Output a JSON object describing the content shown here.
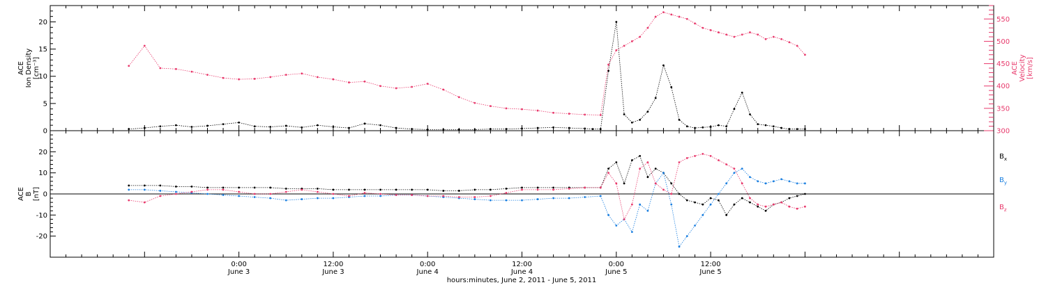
{
  "colors": {
    "density": "#000000",
    "velocity": "#e8386b",
    "bx": "#000000",
    "by": "#1a7fe0",
    "bz": "#e8386b",
    "axis": "#000000"
  },
  "chart_data": [
    {
      "type": "scatter",
      "ylabel_lines": [
        "ACE",
        "Ion Density",
        "[cm⁻³]"
      ],
      "ylim": [
        0,
        23
      ],
      "yticks": [
        0,
        5,
        10,
        15,
        20
      ],
      "y2label_lines": [
        "ACE",
        "Velocity",
        "[km/s]"
      ],
      "y2lim": [
        300,
        580
      ],
      "y2ticks": [
        300,
        350,
        400,
        450,
        500,
        550
      ],
      "series": [
        {
          "key": "density",
          "axis": "left",
          "x": [
            -14,
            -12,
            -10,
            -8,
            -6,
            -4,
            -2,
            0,
            2,
            4,
            6,
            8,
            10,
            12,
            14,
            16,
            18,
            20,
            22,
            24,
            26,
            28,
            30,
            32,
            34,
            36,
            38,
            40,
            42,
            44,
            45,
            46,
            47,
            48,
            49,
            50,
            51,
            52,
            53,
            54,
            55,
            56,
            57,
            58,
            59,
            60,
            61,
            62,
            63,
            64,
            65,
            66,
            67,
            68,
            69,
            70,
            71,
            72
          ],
          "y": [
            0.3,
            0.5,
            0.8,
            1.0,
            0.7,
            0.9,
            1.2,
            1.5,
            0.8,
            0.7,
            0.9,
            0.6,
            1.0,
            0.7,
            0.5,
            1.3,
            1.0,
            0.5,
            0.3,
            0.2,
            0.2,
            0.2,
            0.2,
            0.3,
            0.3,
            0.4,
            0.5,
            0.6,
            0.5,
            0.4,
            0.3,
            0.3,
            11.0,
            20.0,
            3.0,
            1.5,
            2.0,
            3.5,
            6.0,
            12.0,
            8.0,
            2.0,
            0.8,
            0.5,
            0.6,
            0.7,
            1.0,
            0.8,
            4.0,
            7.0,
            3.0,
            1.2,
            1.0,
            0.8,
            0.5,
            0.3,
            0.3,
            0.3
          ]
        },
        {
          "key": "velocity",
          "axis": "right",
          "x": [
            -14,
            -12,
            -10,
            -8,
            -6,
            -4,
            -2,
            0,
            2,
            4,
            6,
            8,
            10,
            12,
            14,
            16,
            18,
            20,
            22,
            24,
            26,
            28,
            30,
            32,
            34,
            36,
            38,
            40,
            42,
            44,
            46,
            47,
            48,
            49,
            50,
            51,
            52,
            53,
            54,
            55,
            56,
            57,
            58,
            59,
            60,
            61,
            62,
            63,
            64,
            65,
            66,
            67,
            68,
            69,
            70,
            71,
            72
          ],
          "y": [
            445,
            490,
            440,
            438,
            432,
            425,
            418,
            415,
            416,
            420,
            425,
            428,
            420,
            415,
            408,
            410,
            400,
            395,
            398,
            405,
            392,
            375,
            362,
            355,
            350,
            348,
            345,
            340,
            338,
            336,
            335,
            448,
            480,
            490,
            500,
            510,
            530,
            555,
            565,
            560,
            555,
            550,
            540,
            530,
            525,
            520,
            515,
            510,
            515,
            520,
            515,
            505,
            510,
            505,
            498,
            490,
            470
          ]
        }
      ]
    },
    {
      "type": "scatter",
      "ylabel_lines": [
        "ACE",
        "B",
        "[nT]"
      ],
      "ylim": [
        -30,
        30
      ],
      "yticks": [
        -20,
        -10,
        0,
        10,
        20
      ],
      "legend": [
        {
          "key": "bx",
          "base": "B",
          "sub": "x"
        },
        {
          "key": "by",
          "base": "B",
          "sub": "y"
        },
        {
          "key": "bz",
          "base": "B",
          "sub": "z"
        }
      ],
      "series": [
        {
          "key": "bx",
          "x": [
            -14,
            -12,
            -10,
            -8,
            -6,
            -4,
            -2,
            0,
            2,
            4,
            6,
            8,
            10,
            12,
            14,
            16,
            18,
            20,
            22,
            24,
            26,
            28,
            30,
            32,
            34,
            36,
            38,
            40,
            42,
            44,
            46,
            47,
            48,
            49,
            50,
            51,
            52,
            53,
            54,
            55,
            56,
            57,
            58,
            59,
            60,
            61,
            62,
            63,
            64,
            65,
            66,
            67,
            68,
            69,
            70,
            71,
            72
          ],
          "y": [
            4,
            4,
            4,
            3.5,
            3.5,
            3,
            3,
            3,
            3,
            3,
            2.5,
            2.5,
            2.5,
            2,
            2,
            2,
            2,
            2,
            2,
            2,
            1.5,
            1.5,
            2,
            2,
            2.5,
            3,
            3,
            3,
            3,
            3,
            3,
            12,
            15,
            5,
            16,
            18,
            8,
            12,
            10,
            5,
            0,
            -3,
            -4,
            -5,
            -2,
            -3,
            -10,
            -5,
            -2,
            -4,
            -6,
            -8,
            -5,
            -4,
            -2,
            -1,
            0
          ]
        },
        {
          "key": "by",
          "x": [
            -14,
            -12,
            -10,
            -8,
            -6,
            -4,
            -2,
            0,
            2,
            4,
            6,
            8,
            10,
            12,
            14,
            16,
            18,
            20,
            22,
            24,
            26,
            28,
            30,
            32,
            34,
            36,
            38,
            40,
            42,
            44,
            46,
            47,
            48,
            49,
            50,
            51,
            52,
            53,
            54,
            55,
            56,
            57,
            58,
            59,
            60,
            61,
            62,
            63,
            64,
            65,
            66,
            67,
            68,
            69,
            70,
            71,
            72
          ],
          "y": [
            2,
            2,
            1.5,
            1,
            0.5,
            0,
            -0.5,
            -1,
            -1.5,
            -2,
            -3,
            -2.5,
            -2,
            -2,
            -1.5,
            -1,
            -1,
            -0.5,
            -0.5,
            -1,
            -1.5,
            -2,
            -2.5,
            -3,
            -3,
            -3,
            -2.5,
            -2,
            -2,
            -1.5,
            -1,
            -10,
            -15,
            -12,
            -18,
            -5,
            -8,
            5,
            10,
            -5,
            -25,
            -20,
            -15,
            -10,
            -5,
            0,
            5,
            10,
            12,
            8,
            6,
            5,
            6,
            7,
            6,
            5,
            5
          ]
        },
        {
          "key": "bz",
          "x": [
            -14,
            -12,
            -10,
            -8,
            -6,
            -4,
            -2,
            0,
            2,
            4,
            6,
            8,
            10,
            12,
            14,
            16,
            18,
            20,
            22,
            24,
            26,
            28,
            30,
            32,
            34,
            36,
            38,
            40,
            42,
            44,
            46,
            47,
            48,
            49,
            50,
            51,
            52,
            53,
            54,
            55,
            56,
            57,
            58,
            59,
            60,
            61,
            62,
            63,
            64,
            65,
            66,
            67,
            68,
            69,
            70,
            71,
            72
          ],
          "y": [
            -3,
            -4,
            -1,
            0,
            1,
            2,
            2,
            1,
            0,
            0,
            1,
            2,
            1,
            0,
            -1,
            0.5,
            0,
            -0.5,
            -0.5,
            -1,
            -1,
            -1.5,
            -1.5,
            -1,
            0.5,
            2,
            2,
            2,
            2.5,
            3,
            3,
            10,
            5,
            -12,
            -5,
            12,
            15,
            5,
            2,
            0,
            15,
            17,
            18,
            19,
            18,
            16,
            14,
            12,
            5,
            -2,
            -5,
            -6,
            -5,
            -4,
            -6,
            -7,
            -6
          ]
        }
      ]
    }
  ],
  "xaxis": {
    "range_hours": [
      -24,
      96
    ],
    "ticks": [
      {
        "hour": 0,
        "label": "0:00",
        "day": "June 3"
      },
      {
        "hour": 12,
        "label": "12:00",
        "day": "June 3"
      },
      {
        "hour": 24,
        "label": "0:00",
        "day": "June 4"
      },
      {
        "hour": 36,
        "label": "12:00",
        "day": "June 4"
      },
      {
        "hour": 48,
        "label": "0:00",
        "day": "June 5"
      },
      {
        "hour": 60,
        "label": "12:00",
        "day": "June 5"
      }
    ],
    "title": "hours:minutes, June  2, 2011 - June  5, 2011"
  }
}
